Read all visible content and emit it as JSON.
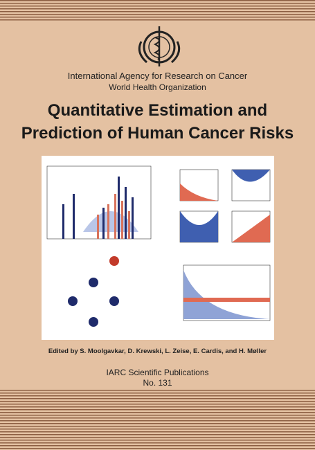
{
  "header": {
    "organization": "International Agency for Research on Cancer",
    "parent_organization": "World Health Organization"
  },
  "title": {
    "line1": "Quantitative Estimation and",
    "line2": "Prediction of Human Cancer Risks"
  },
  "editors": "Edited by S. Moolgavkar, D. Krewski, L. Zeise, E. Cardis, and H. Møller",
  "series": {
    "name": "IARC Scientific Publications",
    "number": "No. 131"
  }
}
